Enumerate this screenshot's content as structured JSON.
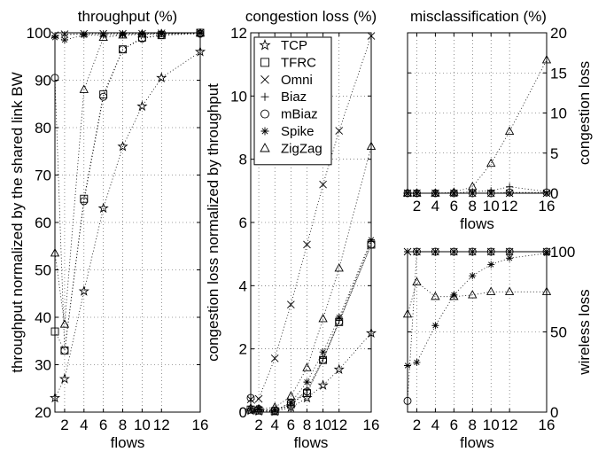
{
  "chart_data": [
    {
      "type": "line",
      "title": "throughput (%)",
      "xlabel": "flows",
      "ylabel": "throughput normalized by the shared link BW",
      "x": [
        1,
        2,
        4,
        6,
        8,
        10,
        12,
        16
      ],
      "x_ticks": [
        "2",
        "4",
        "6",
        "8",
        "10",
        "12",
        "16"
      ],
      "ylim": [
        20,
        100
      ],
      "y_ticks": [
        20,
        30,
        40,
        50,
        60,
        70,
        80,
        90,
        100
      ],
      "grid": true,
      "series": [
        {
          "name": "TCP",
          "marker": "star",
          "values": [
            23,
            27,
            45.5,
            63,
            76,
            84.5,
            90.5,
            96
          ]
        },
        {
          "name": "TFRC",
          "marker": "square",
          "values": [
            37,
            33,
            65,
            87,
            96.5,
            99,
            99.5,
            100
          ]
        },
        {
          "name": "Omni",
          "marker": "x",
          "values": [
            99.5,
            99.7,
            99.8,
            99.8,
            99.8,
            99.8,
            99.9,
            100
          ]
        },
        {
          "name": "Biaz",
          "marker": "plus",
          "values": [
            99.3,
            99.6,
            99.7,
            99.8,
            99.8,
            99.9,
            99.9,
            100
          ]
        },
        {
          "name": "mBiaz",
          "marker": "circle",
          "values": [
            90.5,
            33,
            64.5,
            86.5,
            96.5,
            98.8,
            99.5,
            99.8
          ]
        },
        {
          "name": "Spike",
          "marker": "asterisk",
          "values": [
            99,
            98.5,
            99.5,
            99.5,
            99.6,
            99.7,
            99.8,
            99.9
          ]
        },
        {
          "name": "ZigZag",
          "marker": "triangle",
          "values": [
            53.5,
            38.5,
            88,
            99,
            99.5,
            99.7,
            99.8,
            99.9
          ]
        }
      ]
    },
    {
      "type": "line",
      "title": "congestion loss (%)",
      "xlabel": "flows",
      "ylabel": "congestion loss normalized by throughput",
      "x": [
        1,
        2,
        4,
        6,
        8,
        10,
        12,
        16
      ],
      "x_ticks": [
        "2",
        "4",
        "6",
        "8",
        "10",
        "12",
        "16"
      ],
      "ylim": [
        0,
        12
      ],
      "y_ticks": [
        0,
        2,
        4,
        6,
        8,
        10,
        12
      ],
      "grid": true,
      "legend_position": "top-left",
      "series": [
        {
          "name": "TCP",
          "marker": "star",
          "values": [
            0.05,
            0.03,
            0.02,
            0.15,
            0.45,
            0.85,
            1.35,
            2.5
          ]
        },
        {
          "name": "TFRC",
          "marker": "square",
          "values": [
            0.08,
            0.05,
            0.03,
            0.25,
            0.6,
            1.65,
            2.85,
            5.3
          ]
        },
        {
          "name": "Omni",
          "marker": "x",
          "values": [
            0.4,
            0.42,
            1.7,
            3.4,
            5.3,
            7.2,
            8.9,
            11.9
          ]
        },
        {
          "name": "Biaz",
          "marker": "plus",
          "values": [
            0.1,
            0.08,
            0.05,
            0.2,
            0.7,
            1.7,
            2.9,
            5.4
          ]
        },
        {
          "name": "mBiaz",
          "marker": "circle",
          "values": [
            0.45,
            0.1,
            0.05,
            0.3,
            0.65,
            1.65,
            2.85,
            5.3
          ]
        },
        {
          "name": "Spike",
          "marker": "asterisk",
          "values": [
            0.1,
            0.08,
            0.05,
            0.3,
            0.95,
            1.9,
            3,
            5.45
          ]
        },
        {
          "name": "ZigZag",
          "marker": "triangle",
          "values": [
            0.12,
            0.1,
            0.15,
            0.5,
            1.4,
            2.95,
            4.55,
            8.4
          ]
        }
      ]
    },
    {
      "type": "line",
      "title": "misclassification (%)",
      "xlabel": "flows",
      "ylabel": "congestion loss",
      "x": [
        1,
        2,
        4,
        6,
        8,
        10,
        12,
        16
      ],
      "x_ticks": [
        "2",
        "4",
        "6",
        "8",
        "10",
        "12",
        "16"
      ],
      "ylim": [
        0,
        20
      ],
      "y_ticks": [
        0,
        5,
        10,
        15,
        20
      ],
      "grid": true,
      "series": [
        {
          "name": "Omni",
          "marker": "x",
          "values": [
            0,
            0,
            0,
            0,
            0,
            0,
            0,
            0
          ]
        },
        {
          "name": "Biaz",
          "marker": "plus",
          "values": [
            0,
            0,
            0,
            0,
            0.2,
            0.3,
            0.8,
            0.2
          ]
        },
        {
          "name": "mBiaz",
          "marker": "circle",
          "values": [
            0,
            0,
            0,
            0,
            0,
            0,
            0.1,
            0.1
          ]
        },
        {
          "name": "Spike",
          "marker": "asterisk",
          "values": [
            0,
            0,
            0,
            0,
            0,
            0,
            0,
            0
          ]
        },
        {
          "name": "ZigZag",
          "marker": "triangle",
          "values": [
            0,
            0,
            0,
            0.1,
            0.8,
            3.7,
            7.7,
            16.6
          ]
        }
      ]
    },
    {
      "type": "line",
      "title": "",
      "xlabel": "flows",
      "ylabel": "wireless loss",
      "x": [
        1,
        2,
        4,
        6,
        8,
        10,
        12,
        16
      ],
      "x_ticks": [
        "2",
        "4",
        "6",
        "8",
        "10",
        "12",
        "16"
      ],
      "ylim": [
        0,
        100
      ],
      "y_ticks": [
        0,
        50,
        100
      ],
      "grid": true,
      "series": [
        {
          "name": "Omni",
          "marker": "x",
          "values": [
            100,
            100,
            100,
            100,
            100,
            100,
            100,
            100
          ]
        },
        {
          "name": "Biaz",
          "marker": "plus",
          "values": [
            100,
            100,
            100,
            100,
            100,
            100,
            100,
            100
          ]
        },
        {
          "name": "mBiaz",
          "marker": "circle",
          "values": [
            7,
            100,
            100,
            100,
            100,
            100,
            100,
            100
          ]
        },
        {
          "name": "Spike",
          "marker": "asterisk",
          "values": [
            29,
            31,
            54,
            73,
            85,
            92,
            96,
            99
          ]
        },
        {
          "name": "ZigZag",
          "marker": "triangle",
          "values": [
            61,
            81,
            72,
            72,
            73,
            75,
            75,
            75
          ]
        }
      ]
    }
  ]
}
